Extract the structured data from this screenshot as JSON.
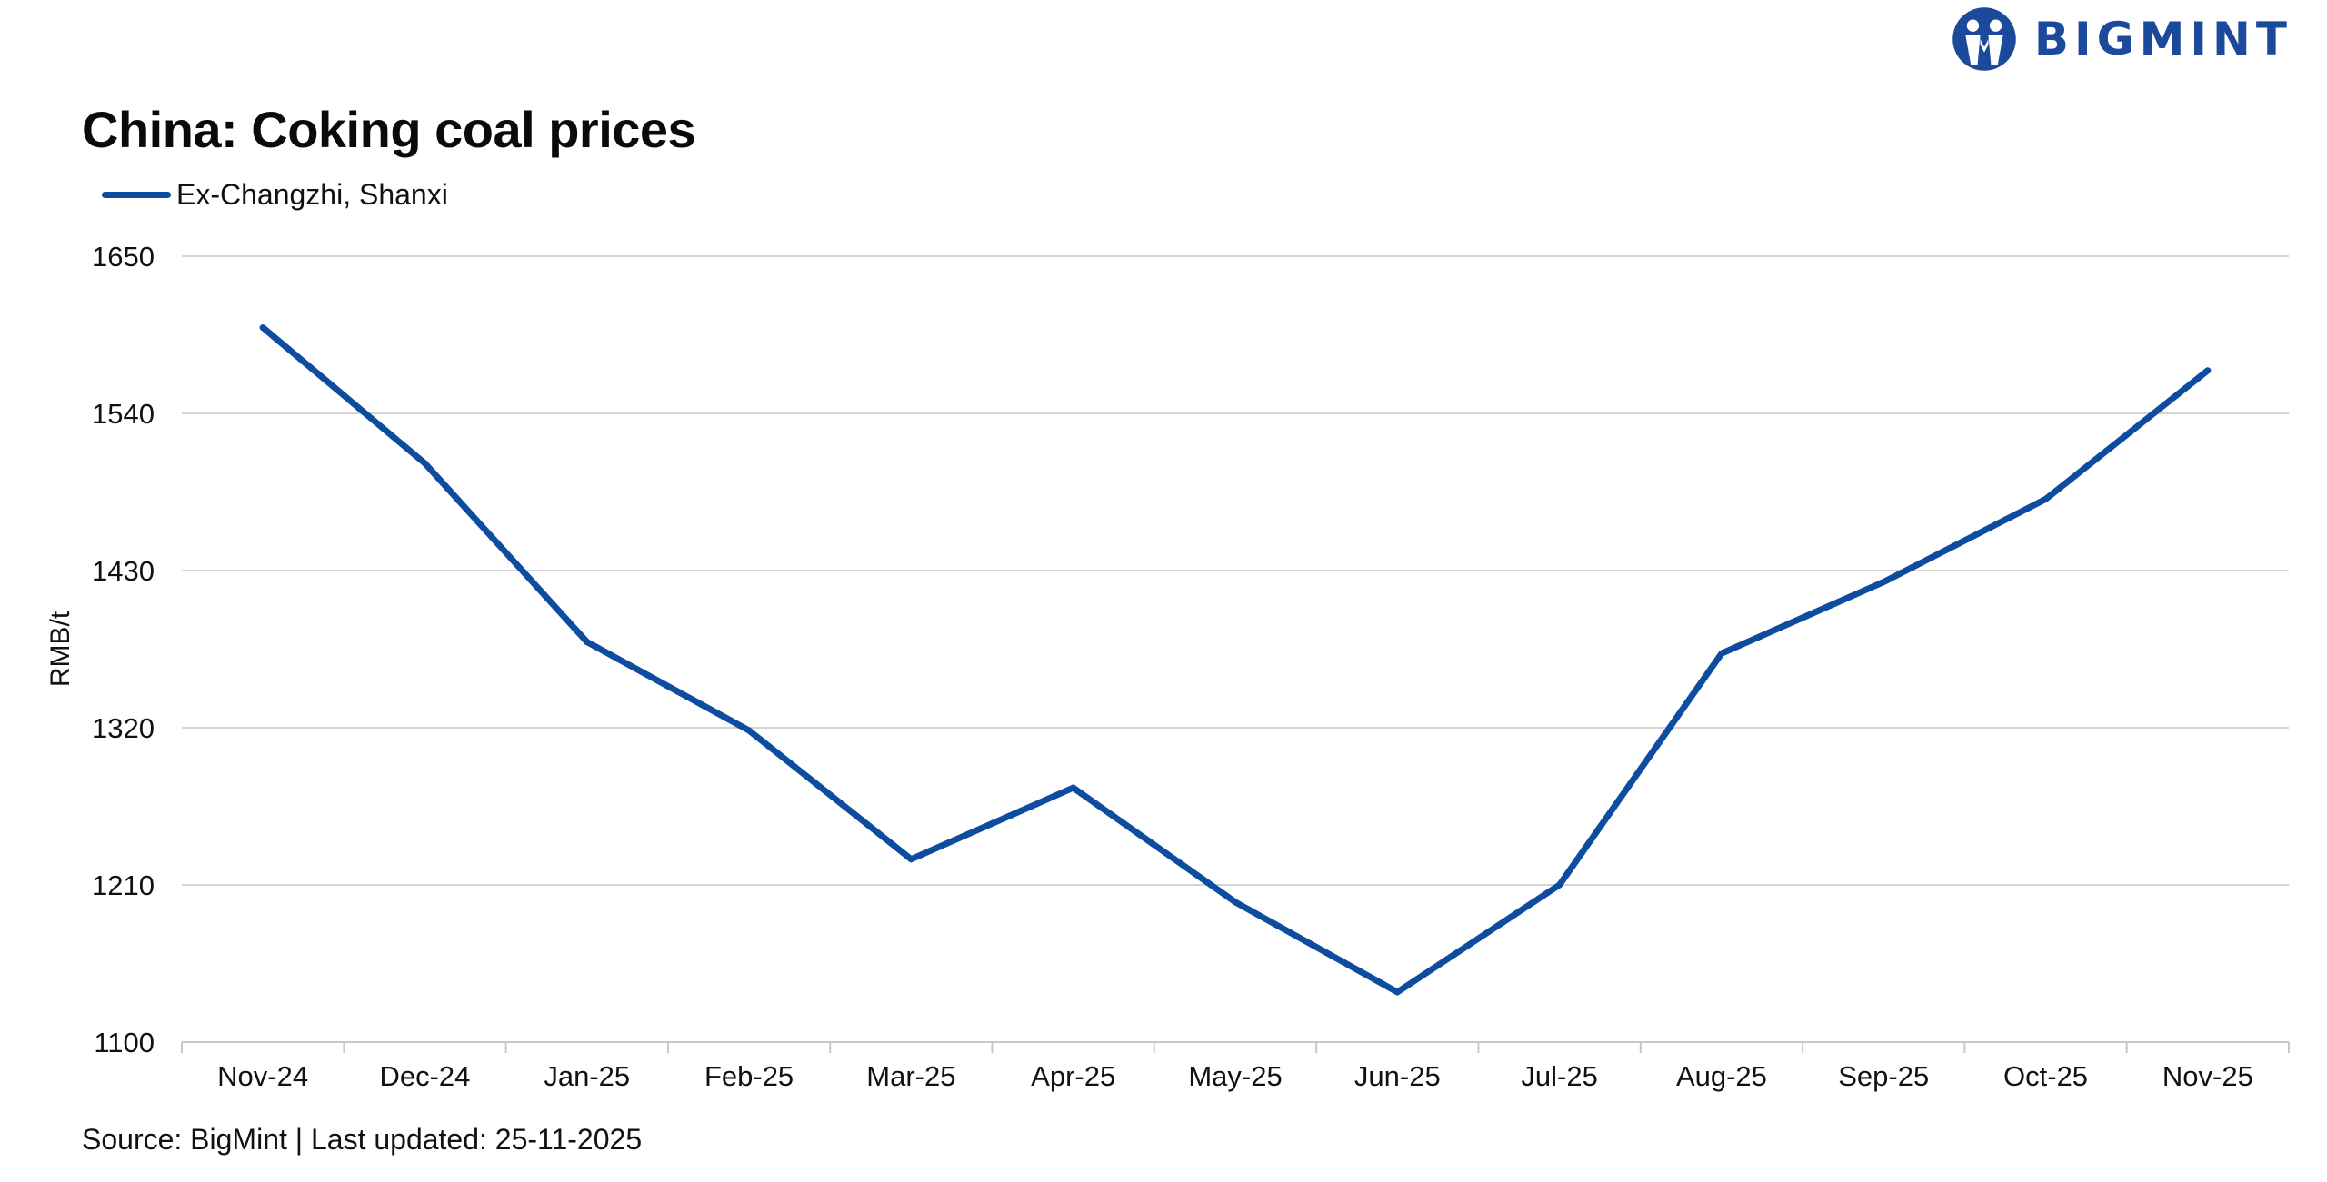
{
  "brand": {
    "name": "BIGMINT",
    "color": "#1b4a9c"
  },
  "source_note": "Source: BigMint | Last updated: 25-11-2025",
  "chart_data": {
    "type": "line",
    "title": "China: Coking coal prices",
    "xlabel": "",
    "ylabel": "RMB/t",
    "categories": [
      "Nov-24",
      "Dec-24",
      "Jan-25",
      "Feb-25",
      "Mar-25",
      "Apr-25",
      "May-25",
      "Jun-25",
      "Jul-25",
      "Aug-25",
      "Sep-25",
      "Oct-25",
      "Nov-25"
    ],
    "series": [
      {
        "name": "Ex-Changzhi, Shanxi",
        "color": "#0d4c9e",
        "values": [
          1600,
          1505,
          1380,
          1318,
          1228,
          1278,
          1198,
          1135,
          1210,
          1372,
          1422,
          1480,
          1570
        ]
      }
    ],
    "ylim": [
      1100,
      1650
    ],
    "yticks": [
      1100,
      1210,
      1320,
      1430,
      1540,
      1650
    ],
    "grid": true,
    "legend_position": "top-left"
  }
}
